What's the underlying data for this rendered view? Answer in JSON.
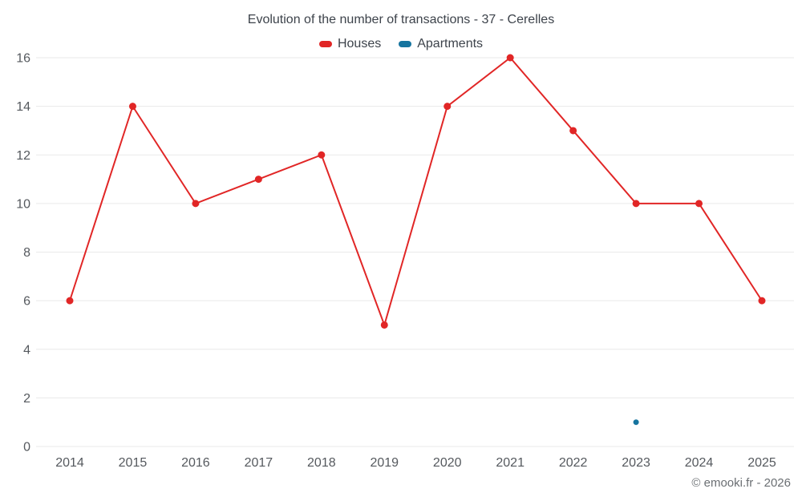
{
  "chart_data": {
    "type": "line",
    "title": "Evolution of the number of transactions - 37 - Cerelles",
    "categories": [
      "2014",
      "2015",
      "2016",
      "2017",
      "2018",
      "2019",
      "2020",
      "2021",
      "2022",
      "2023",
      "2024",
      "2025"
    ],
    "series": [
      {
        "name": "Houses",
        "color": "#e12626",
        "point_radius": 4.5,
        "values": [
          6,
          14,
          10,
          11,
          12,
          5,
          14,
          16,
          13,
          10,
          10,
          6
        ]
      },
      {
        "name": "Apartments",
        "color": "#16749f",
        "point_radius": 3.5,
        "values": [
          null,
          null,
          null,
          null,
          null,
          null,
          null,
          null,
          null,
          1,
          null,
          null
        ]
      }
    ],
    "xlabel": "",
    "ylabel": "",
    "ylim": [
      0,
      16
    ],
    "ytick_step": 2,
    "grid": "horizontal",
    "legend_position": "top",
    "axis_label_color": "#55595e",
    "grid_color": "#e9e9e9"
  },
  "footer": {
    "copyright": "© emooki.fr - 2026"
  }
}
